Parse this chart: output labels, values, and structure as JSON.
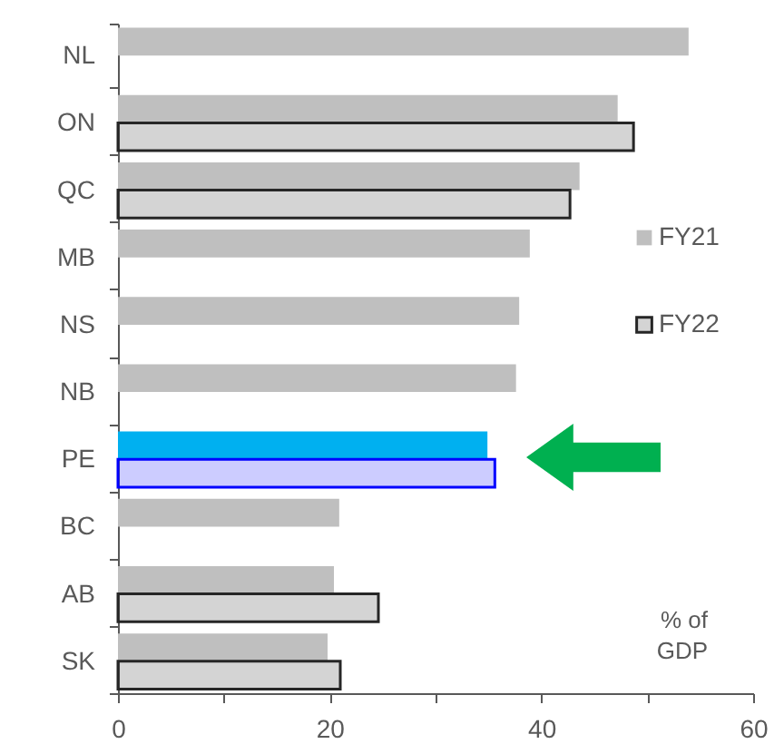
{
  "chart_data": {
    "type": "bar",
    "orientation": "horizontal",
    "xlabel": "% of GDP",
    "categories": [
      "NL",
      "ON",
      "QC",
      "MB",
      "NS",
      "NB",
      "PE",
      "BC",
      "AB",
      "SK"
    ],
    "series": [
      {
        "name": "FY21",
        "color": "#bfbfbf",
        "colors": [
          "#bfbfbf",
          "#bfbfbf",
          "#bfbfbf",
          "#bfbfbf",
          "#bfbfbf",
          "#bfbfbf",
          "#00b0f0",
          "#bfbfbf",
          "#bfbfbf",
          "#bfbfbf"
        ],
        "values": [
          53.9,
          47.2,
          43.6,
          38.9,
          37.9,
          37.6,
          34.9,
          20.9,
          20.4,
          19.8
        ]
      },
      {
        "name": "FY22",
        "color": "#262626",
        "colors": [
          "#262626",
          "#262626",
          "#262626",
          "#262626",
          "#262626",
          "#262626",
          "#0000ff",
          "#262626",
          "#262626",
          "#262626"
        ],
        "values": [
          null,
          48.7,
          42.7,
          null,
          null,
          null,
          35.6,
          null,
          24.6,
          21.0
        ]
      }
    ],
    "xlim": [
      0,
      60
    ],
    "xticks": [
      0,
      {
        "value": 10,
        "label": null
      },
      20,
      {
        "value": 30,
        "label": null
      },
      40,
      {
        "value": 50,
        "label": null
      },
      60
    ],
    "legend": "right",
    "grid": false
  }
}
